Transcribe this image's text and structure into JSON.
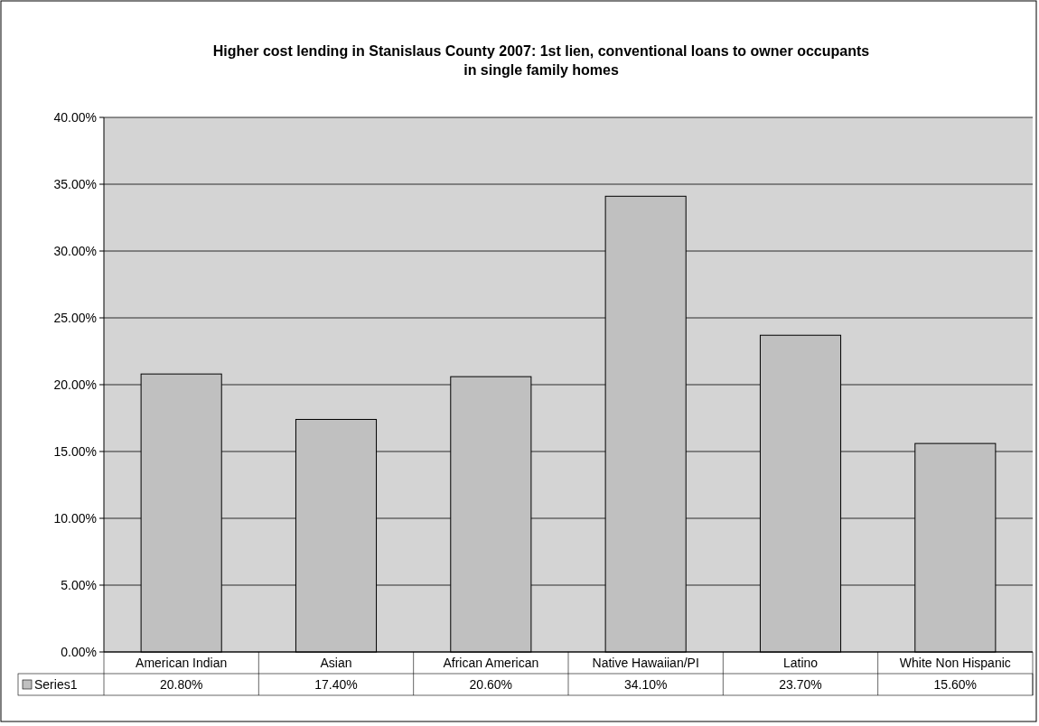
{
  "chart_data": {
    "type": "bar",
    "title": "Higher cost lending in Stanislaus County 2007: 1st lien, conventional loans to owner occupants in single family homes",
    "categories": [
      "American Indian",
      "Asian",
      "African American",
      "Native Hawaiian/PI",
      "Latino",
      "White Non Hispanic"
    ],
    "series": [
      {
        "name": "Series1",
        "color": "#c0c0c0",
        "values": [
          20.8,
          17.4,
          20.6,
          34.1,
          23.7,
          15.6
        ],
        "value_labels": [
          "20.80%",
          "17.40%",
          "20.60%",
          "34.10%",
          "23.70%",
          "15.60%"
        ]
      }
    ],
    "ylim": [
      0,
      40
    ],
    "yticks": [
      {
        "value": 0,
        "label": "0.00%"
      },
      {
        "value": 5,
        "label": "5.00%"
      },
      {
        "value": 10,
        "label": "10.00%"
      },
      {
        "value": 15,
        "label": "15.00%"
      },
      {
        "value": 20,
        "label": "20.00%"
      },
      {
        "value": 25,
        "label": "25.00%"
      },
      {
        "value": 30,
        "label": "30.00%"
      },
      {
        "value": 35,
        "label": "35.00%"
      },
      {
        "value": 40,
        "label": "40.00%"
      }
    ],
    "grid": "y",
    "legend": "bottom"
  }
}
